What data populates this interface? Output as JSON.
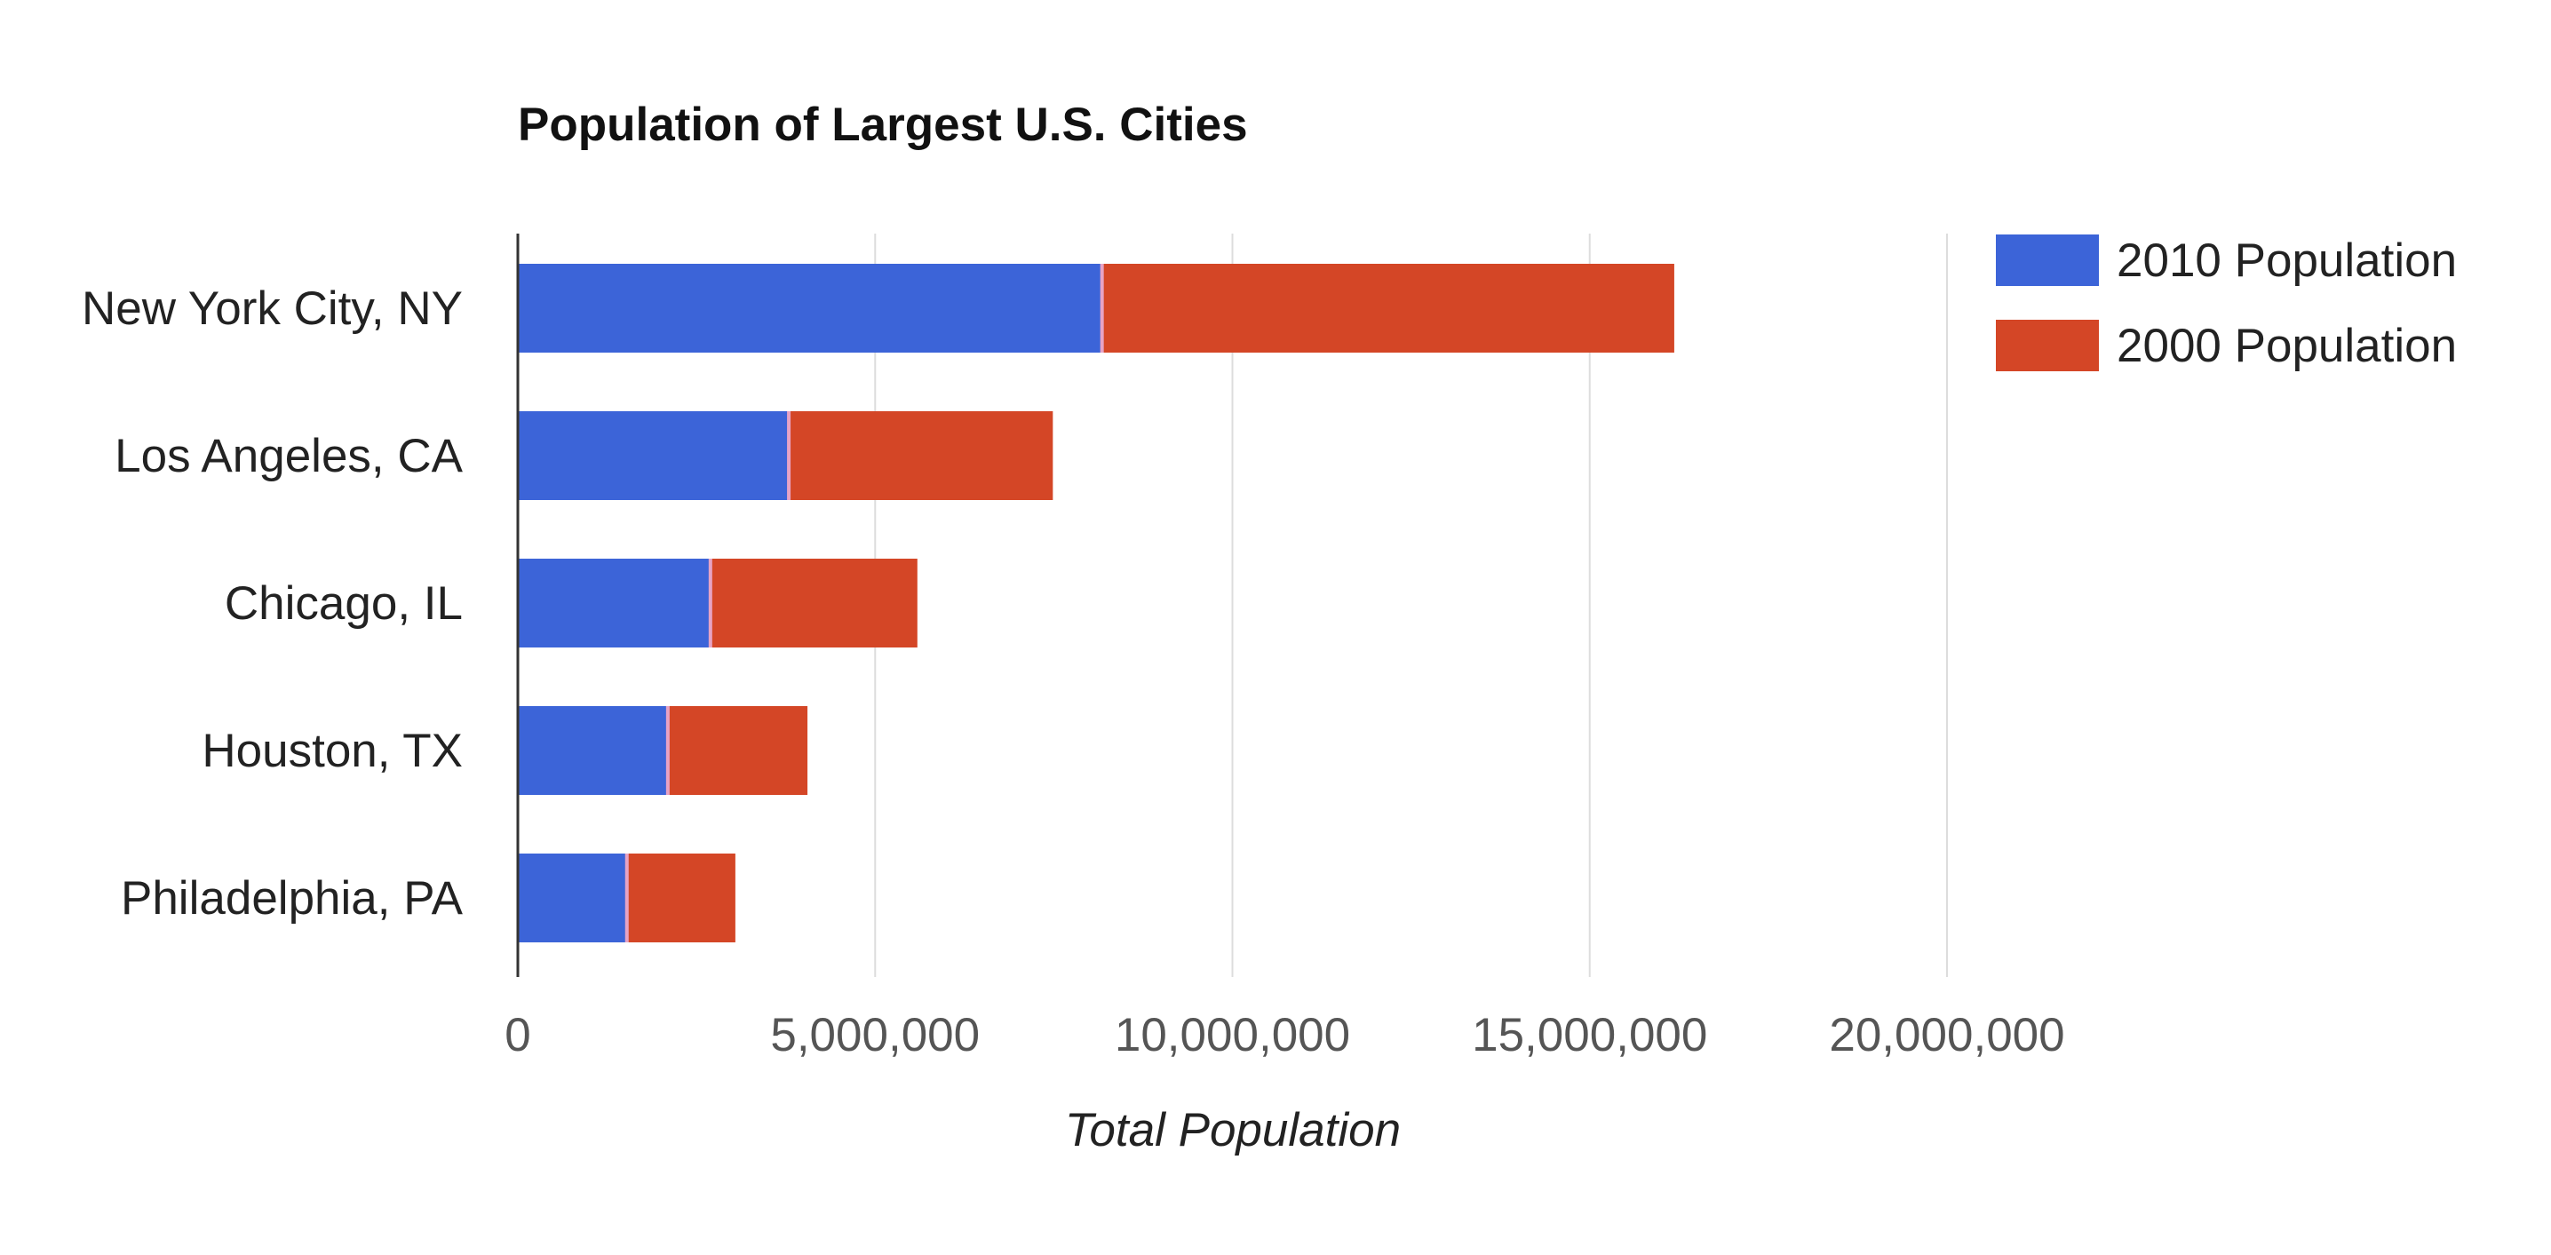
{
  "chart_data": {
    "type": "bar",
    "orientation": "horizontal",
    "stacked": true,
    "title": "Population of Largest U.S. Cities",
    "xlabel": "Total Population",
    "ylabel": "",
    "categories": [
      "New York City, NY",
      "Los Angeles, CA",
      "Chicago, IL",
      "Houston, TX",
      "Philadelphia, PA"
    ],
    "series": [
      {
        "name": "2010 Population",
        "color": "#3c64d8",
        "values": [
          8175000,
          3792000,
          2695000,
          2099000,
          1526000
        ]
      },
      {
        "name": "2000 Population",
        "color": "#d44626",
        "values": [
          8008000,
          3695000,
          2896000,
          1954000,
          1518000
        ]
      }
    ],
    "xlim": [
      0,
      20000000
    ],
    "xticks": [
      0,
      5000000,
      10000000,
      15000000,
      20000000
    ],
    "xtick_labels": [
      "0",
      "5,000,000",
      "10,000,000",
      "15,000,000",
      "20,000,000"
    ],
    "grid": true,
    "legend": "right"
  }
}
